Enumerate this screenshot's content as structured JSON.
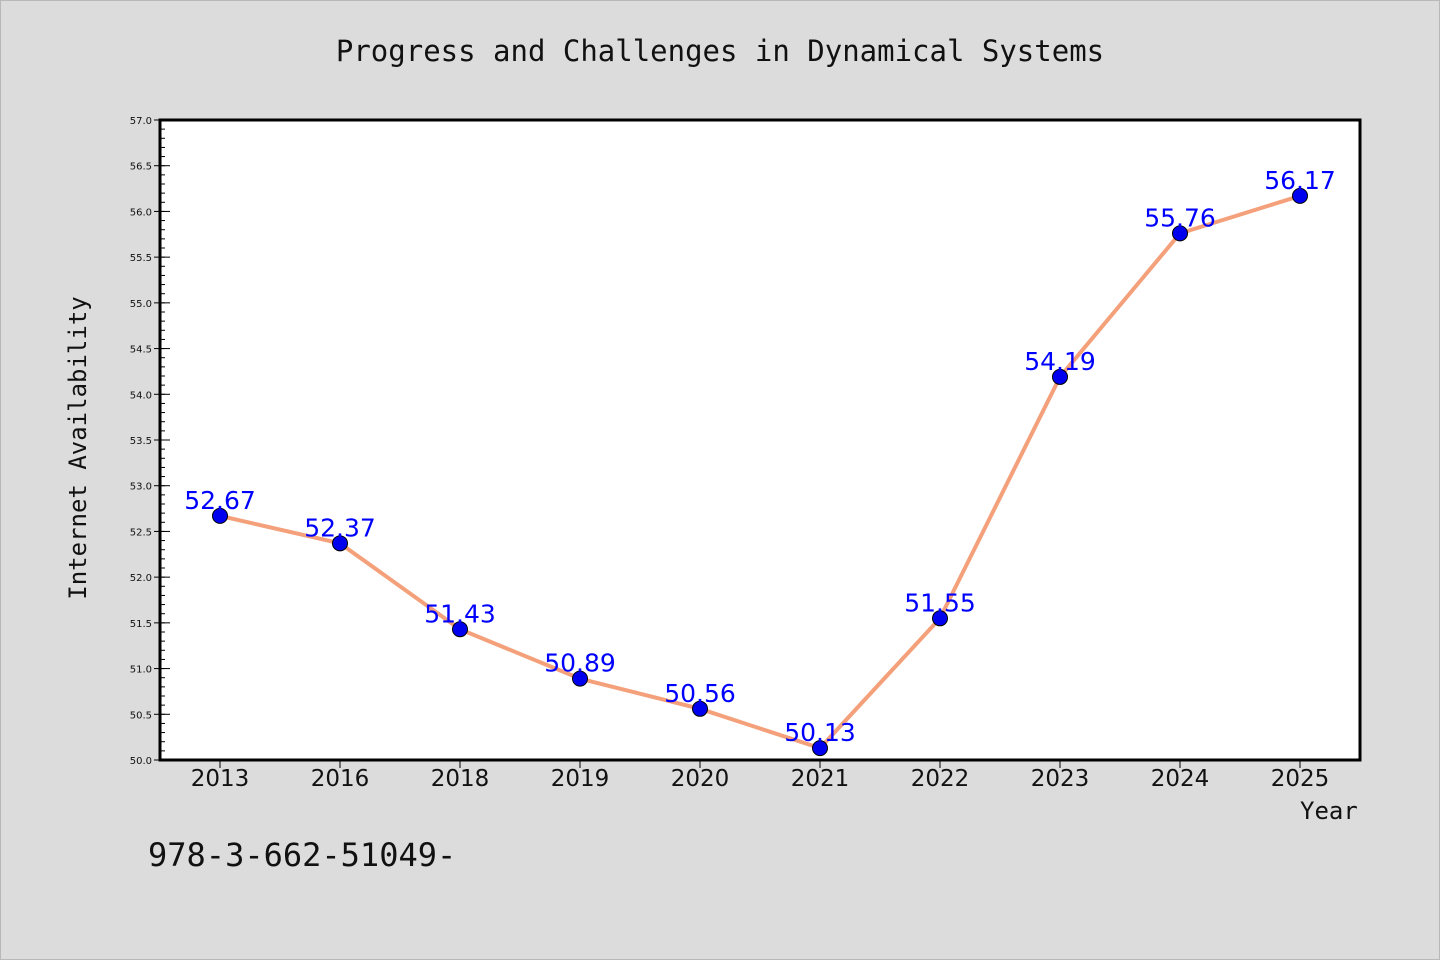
{
  "chart_data": {
    "type": "line",
    "title": "Progress and Challenges in Dynamical Systems",
    "xlabel": "Year",
    "ylabel": "Internet Availability",
    "categories": [
      "2013",
      "2016",
      "2018",
      "2019",
      "2020",
      "2021",
      "2022",
      "2023",
      "2024",
      "2025"
    ],
    "series": [
      {
        "values": [
          52.67,
          52.37,
          51.43,
          50.89,
          50.56,
          50.13,
          51.55,
          54.19,
          55.76,
          56.17
        ]
      }
    ],
    "data_labels": [
      "52.67",
      "52.37",
      "51.43",
      "50.89",
      "50.56",
      "50.13",
      "51.55",
      "54.19",
      "55.76",
      "56.17"
    ],
    "ylim": [
      50.0,
      57.0
    ],
    "yticks": [
      "50.0",
      "50.5",
      "51.0",
      "51.5",
      "52.0",
      "52.5",
      "53.0",
      "53.5",
      "54.0",
      "54.5",
      "55.0",
      "55.5",
      "56.0",
      "56.5",
      "57.0"
    ],
    "grid": false,
    "legend": "none",
    "line_color": "#f4a07a",
    "marker_color": "#0000ee",
    "label_color": "#0000ff"
  },
  "footer_text": "978-3-662-51049-"
}
